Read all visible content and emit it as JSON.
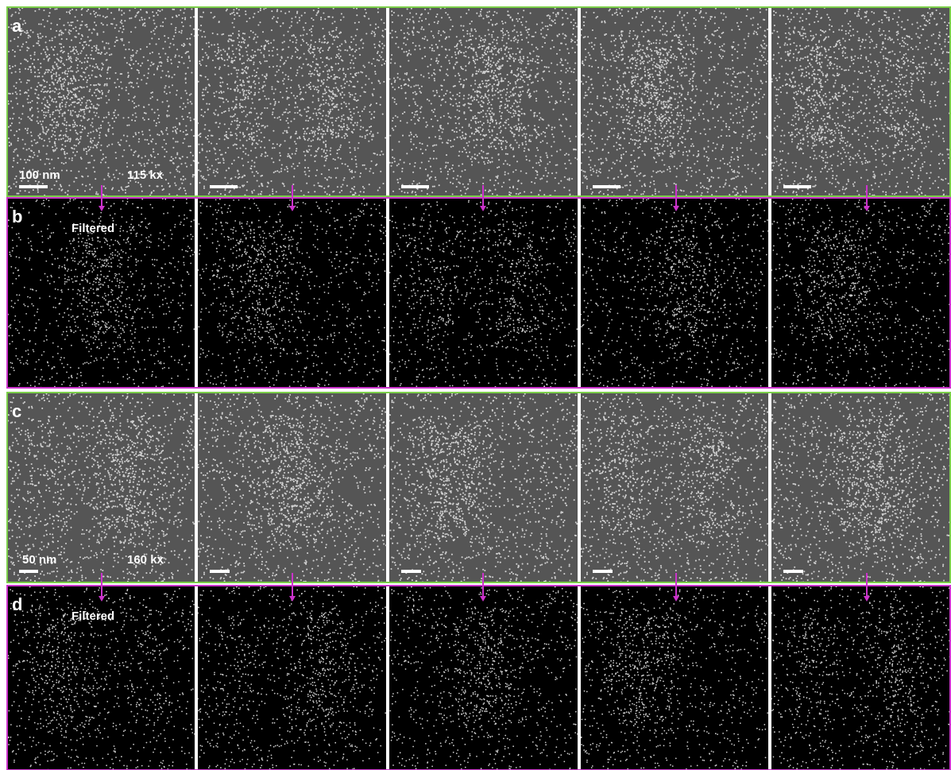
{
  "panels": [
    {
      "label": "a",
      "scale_bar": "100 nm",
      "magnification": "115 kx"
    },
    {
      "label": "b",
      "note": "Filtered"
    },
    {
      "label": "c",
      "scale_bar": "50 nm",
      "magnification": "160 kx"
    },
    {
      "label": "d",
      "note": "Filtered"
    }
  ]
}
